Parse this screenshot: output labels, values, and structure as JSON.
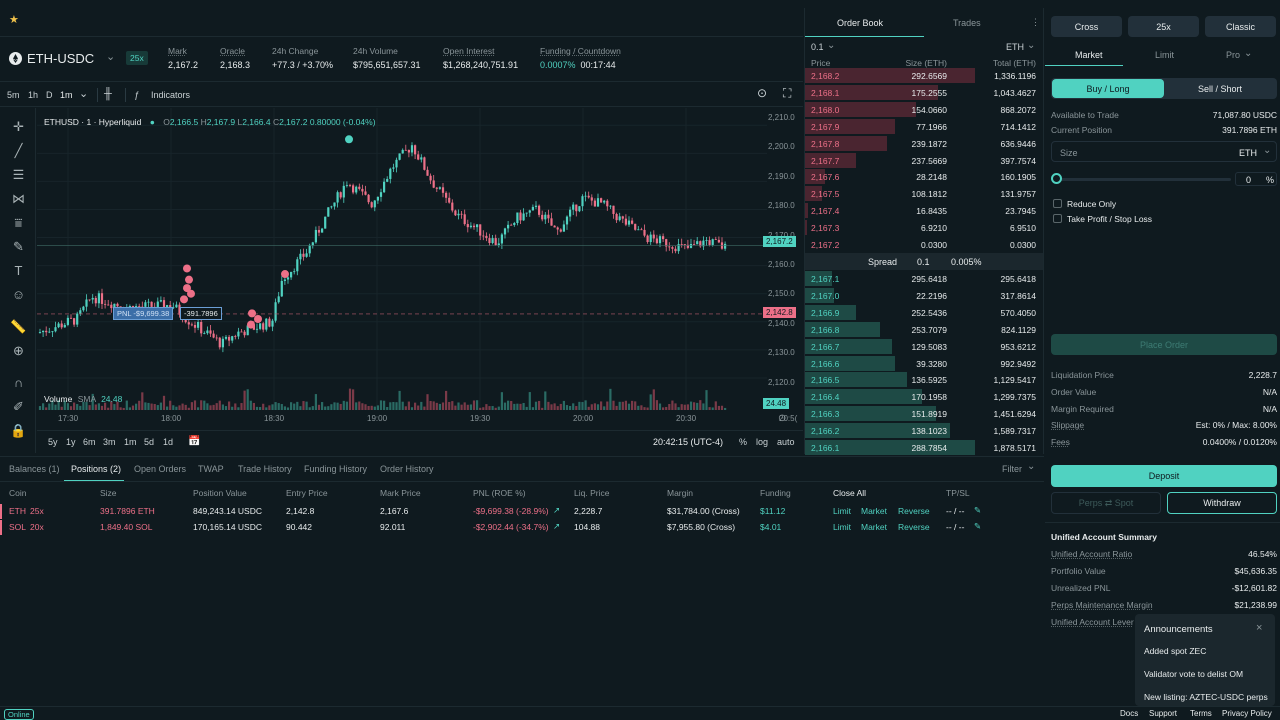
{
  "topbar": {
    "star_icon": "star-icon"
  },
  "pair": {
    "name": "ETH-USDC",
    "leverage": "25x"
  },
  "stats": [
    {
      "label": "Mark",
      "value": "2,167.2"
    },
    {
      "label": "Oracle",
      "value": "2,168.3"
    },
    {
      "label": "24h Change",
      "value": "+77.3 / +3.70%"
    },
    {
      "label": "24h Volume",
      "value": "$795,651,657.31"
    },
    {
      "label": "Open Interest",
      "value": "$1,268,240,751.91"
    },
    {
      "label": "Funding / Countdown",
      "value": "0.0007%",
      "value2": "00:17:44"
    }
  ],
  "toolbar": {
    "tf1": "5m",
    "tf2": "1h",
    "tf3": "D",
    "tf4": "1m",
    "indicators": "Indicators"
  },
  "chart": {
    "legend_symbol": "ETHUSD · 1 · Hyperliquid",
    "ohlc": {
      "o_label": "O",
      "o": "2,166.5",
      "h_label": "H",
      "h": "2,167.9",
      "l_label": "L",
      "l": "2,166.4",
      "c_label": "C",
      "c": "2,167.2",
      "chg": "0.80000 (-0.04%)"
    },
    "volume_label": "Volume",
    "volume_sma": "SMA",
    "volume_value": "24.48",
    "pnl_tag": "PNL -$9,699.38",
    "size_tag": "-391.7896",
    "price_tag": "2,167.2",
    "liq_tag": "2,142.8",
    "vol_tag": "24.48",
    "y_ticks": [
      "2,210.0",
      "2,200.0",
      "2,190.0",
      "2,180.0",
      "2,170.0",
      "2,160.0",
      "2,150.0",
      "2,140.0",
      "2,130.0",
      "2,120.0"
    ],
    "x_ticks": [
      "17:30",
      "18:00",
      "18:30",
      "19:00",
      "19:30",
      "20:00",
      "20:30",
      "20:5("
    ],
    "time": "20:42:15 (UTC-4)",
    "pct": "%",
    "log": "log",
    "auto": "auto",
    "ranges": [
      "5y",
      "1y",
      "6m",
      "3m",
      "1m",
      "5d",
      "1d"
    ]
  },
  "orderbook": {
    "tab_book": "Order Book",
    "tab_trades": "Trades",
    "tick": "0.1",
    "unit": "ETH",
    "headers": [
      "Price",
      "Size (ETH)",
      "Total (ETH)"
    ],
    "asks": [
      {
        "price": "2,168.2",
        "size": "292.6569",
        "total": "1,336.1196",
        "depth": 1.0
      },
      {
        "price": "2,168.1",
        "size": "175.2555",
        "total": "1,043.4627",
        "depth": 0.78
      },
      {
        "price": "2,168.0",
        "size": "154.0660",
        "total": "868.2072",
        "depth": 0.65
      },
      {
        "price": "2,167.9",
        "size": "77.1966",
        "total": "714.1412",
        "depth": 0.53
      },
      {
        "price": "2,167.8",
        "size": "239.1872",
        "total": "636.9446",
        "depth": 0.48
      },
      {
        "price": "2,167.7",
        "size": "237.5669",
        "total": "397.7574",
        "depth": 0.3
      },
      {
        "price": "2,167.6",
        "size": "28.2148",
        "total": "160.1905",
        "depth": 0.12
      },
      {
        "price": "2,167.5",
        "size": "108.1812",
        "total": "131.9757",
        "depth": 0.1
      },
      {
        "price": "2,167.4",
        "size": "16.8435",
        "total": "23.7945",
        "depth": 0.02
      },
      {
        "price": "2,167.3",
        "size": "6.9210",
        "total": "6.9510",
        "depth": 0.01
      },
      {
        "price": "2,167.2",
        "size": "0.0300",
        "total": "0.0300",
        "depth": 0.0
      }
    ],
    "spread_label": "Spread",
    "spread_value": "0.1",
    "spread_pct": "0.005%",
    "bids": [
      {
        "price": "2,167.1",
        "size": "295.6418",
        "total": "295.6418",
        "depth": 0.16
      },
      {
        "price": "2,167.0",
        "size": "22.2196",
        "total": "317.8614",
        "depth": 0.17
      },
      {
        "price": "2,166.9",
        "size": "252.5436",
        "total": "570.4050",
        "depth": 0.3
      },
      {
        "price": "2,166.8",
        "size": "253.7079",
        "total": "824.1129",
        "depth": 0.44
      },
      {
        "price": "2,166.7",
        "size": "129.5083",
        "total": "953.6212",
        "depth": 0.51
      },
      {
        "price": "2,166.6",
        "size": "39.3280",
        "total": "992.9492",
        "depth": 0.53
      },
      {
        "price": "2,166.5",
        "size": "136.5925",
        "total": "1,129.5417",
        "depth": 0.6
      },
      {
        "price": "2,166.4",
        "size": "170.1958",
        "total": "1,299.7375",
        "depth": 0.69
      },
      {
        "price": "2,166.3",
        "size": "151.8919",
        "total": "1,451.6294",
        "depth": 0.77
      },
      {
        "price": "2,166.2",
        "size": "138.1023",
        "total": "1,589.7317",
        "depth": 0.85
      },
      {
        "price": "2,166.1",
        "size": "288.7854",
        "total": "1,878.5171",
        "depth": 1.0
      }
    ]
  },
  "bottom": {
    "tabs": [
      "Balances (1)",
      "Positions (2)",
      "Open Orders",
      "TWAP",
      "Trade History",
      "Funding History",
      "Order History"
    ],
    "filter": "Filter",
    "headers": [
      "Coin",
      "Size",
      "Position Value",
      "Entry Price",
      "Mark Price",
      "PNL (ROE %)",
      "Liq. Price",
      "Margin",
      "Funding",
      "Close All",
      "TP/SL"
    ],
    "rows": [
      {
        "coin": "ETH",
        "lev": "25x",
        "size": "391.7896 ETH",
        "value": "849,243.14 USDC",
        "entry": "2,142.8",
        "mark": "2,167.6",
        "pnl": "-$9,699.38 (-28.9%)",
        "liq": "2,228.7",
        "margin": "$31,784.00 (Cross)",
        "funding": "$11.12",
        "a1": "Limit",
        "a2": "Market",
        "a3": "Reverse",
        "tpsl": "-- / --"
      },
      {
        "coin": "SOL",
        "lev": "20x",
        "size": "1,849.40 SOL",
        "value": "170,165.14 USDC",
        "entry": "90.442",
        "mark": "92.011",
        "pnl": "-$2,902.44 (-34.7%)",
        "liq": "104.88",
        "margin": "$7,955.80 (Cross)",
        "funding": "$4.01",
        "a1": "Limit",
        "a2": "Market",
        "a3": "Reverse",
        "tpsl": "-- / --"
      }
    ]
  },
  "right": {
    "mode1": "Cross",
    "mode2": "25x",
    "mode3": "Classic",
    "otab1": "Market",
    "otab2": "Limit",
    "otab3": "Pro",
    "buy": "Buy / Long",
    "sell": "Sell / Short",
    "avail_label": "Available to Trade",
    "avail_value": "71,087.80 USDC",
    "pos_label": "Current Position",
    "pos_value": "391.7896 ETH",
    "size_label": "Size",
    "size_unit": "ETH",
    "slider_value": "0",
    "slider_unit": "%",
    "reduce_only": "Reduce Only",
    "tpsl": "Take Profit / Stop Loss",
    "place_order": "Place Order",
    "info": [
      {
        "label": "Liquidation Price",
        "value": "2,228.7"
      },
      {
        "label": "Order Value",
        "value": "N/A"
      },
      {
        "label": "Margin Required",
        "value": "N/A"
      },
      {
        "label": "Slippage",
        "value": "Est: 0% / Max: 8.00%"
      },
      {
        "label": "Fees",
        "value": "0.0400% / 0.0120%"
      }
    ],
    "deposit": "Deposit",
    "perps_spot": "Perps ⇄ Spot",
    "withdraw": "Withdraw",
    "summary_title": "Unified Account Summary",
    "summary": [
      {
        "label": "Unified Account Ratio",
        "value": "46.54%"
      },
      {
        "label": "Portfolio Value",
        "value": "$45,636.35"
      },
      {
        "label": "Unrealized PNL",
        "value": "-$12,601.82"
      },
      {
        "label": "Perps Maintenance Margin",
        "value": "$21,238.99"
      },
      {
        "label": "Unified Account Lever",
        "value": ""
      }
    ]
  },
  "announcements": {
    "title": "Announcements",
    "items": [
      "Added spot ZEC",
      "Validator vote to delist OM",
      "New listing: AZTEC-USDC perps"
    ]
  },
  "footer": {
    "status": "Online",
    "links": [
      "Docs",
      "Support",
      "Terms",
      "Privacy Policy"
    ]
  },
  "colors": {
    "green": "#50d2c1",
    "red": "#ed7088",
    "bg": "#0f1a1f"
  }
}
